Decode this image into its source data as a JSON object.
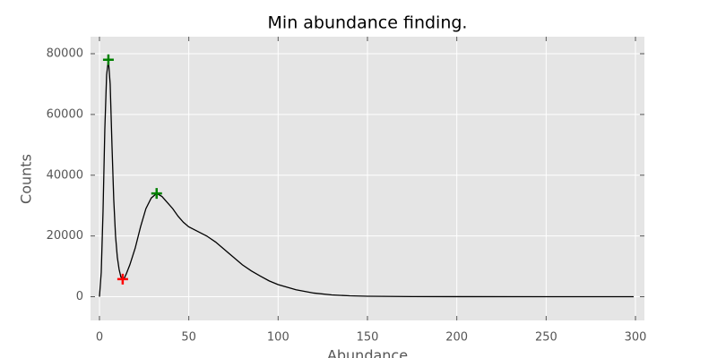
{
  "chart_data": {
    "type": "line",
    "title": "Min abundance finding.",
    "xlabel": "Abundance",
    "ylabel": "Counts",
    "x": [
      0,
      1,
      2,
      3,
      4,
      5,
      6,
      7,
      8,
      9,
      10,
      11,
      12,
      13,
      14,
      15,
      17,
      20,
      23,
      26,
      29,
      32,
      35,
      38,
      41,
      44,
      47,
      50,
      55,
      60,
      65,
      70,
      75,
      80,
      85,
      90,
      95,
      100,
      110,
      120,
      130,
      140,
      150,
      175,
      200,
      250,
      299
    ],
    "series": [
      {
        "color": "#000000",
        "values": [
          0,
          8000,
          28000,
          55000,
          73000,
          78000,
          70000,
          50000,
          32000,
          20000,
          13000,
          9000,
          6500,
          5800,
          6200,
          7500,
          10500,
          16000,
          23000,
          29000,
          32500,
          34000,
          33000,
          31000,
          29000,
          26500,
          24500,
          23000,
          21500,
          20000,
          18000,
          15500,
          13000,
          10500,
          8500,
          6800,
          5200,
          4000,
          2300,
          1200,
          600,
          300,
          150,
          50,
          20,
          5,
          0
        ]
      }
    ],
    "markers": [
      {
        "color": "#008000",
        "x": [
          5,
          32
        ],
        "values": [
          78000,
          34000
        ]
      },
      {
        "color": "#ff0000",
        "x": [
          13
        ],
        "values": [
          5800
        ]
      }
    ],
    "xlim": [
      -5,
      305
    ],
    "ylim": [
      -7800,
      85600
    ],
    "xticks": [
      0,
      50,
      100,
      150,
      200,
      250,
      300
    ],
    "yticks": [
      0,
      20000,
      40000,
      60000,
      80000
    ],
    "grid": true
  }
}
